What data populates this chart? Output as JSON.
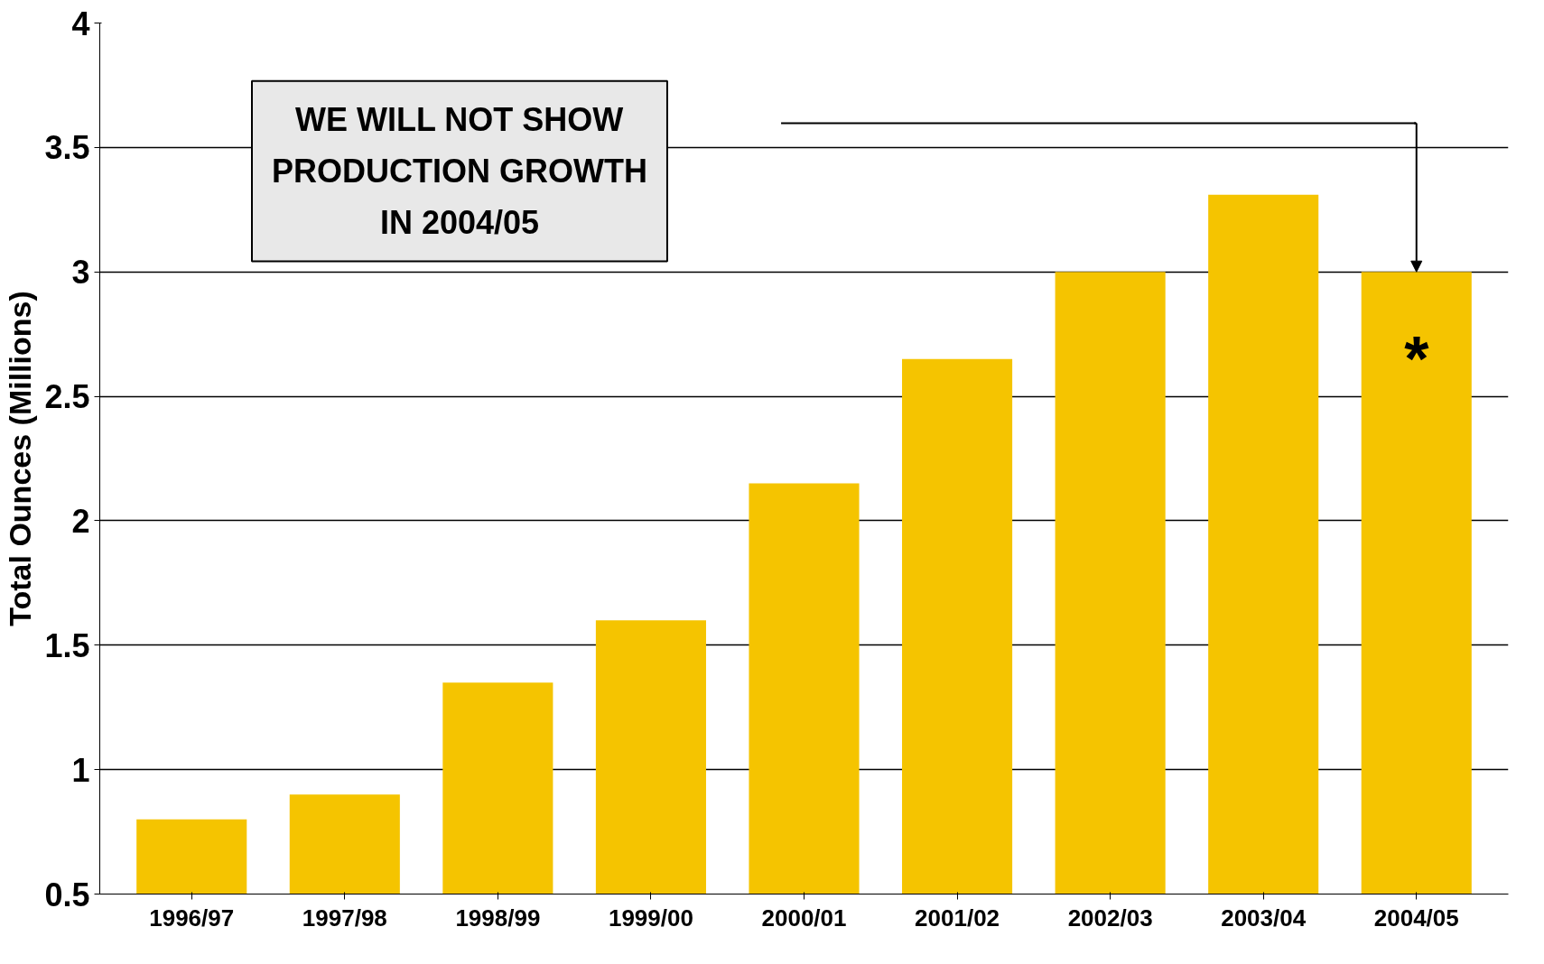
{
  "chart_data": {
    "type": "bar",
    "ylabel": "Total Ounces (Millions)",
    "categories": [
      "1996/97",
      "1997/98",
      "1998/99",
      "1999/00",
      "2000/01",
      "2001/02",
      "2002/03",
      "2003/04",
      "2004/05"
    ],
    "values": [
      0.8,
      0.9,
      1.35,
      1.6,
      2.15,
      2.65,
      3.0,
      3.31,
      3.0
    ],
    "color": "#f5c400",
    "ylim": [
      0.5,
      4
    ],
    "yticks": [
      0.5,
      1,
      1.5,
      2,
      2.5,
      3,
      3.5,
      4
    ],
    "grid": "y",
    "annotations": [
      "WE WILL NOT SHOW\nPRODUCTION GROWTH\nIN 2004/05",
      "*"
    ]
  }
}
